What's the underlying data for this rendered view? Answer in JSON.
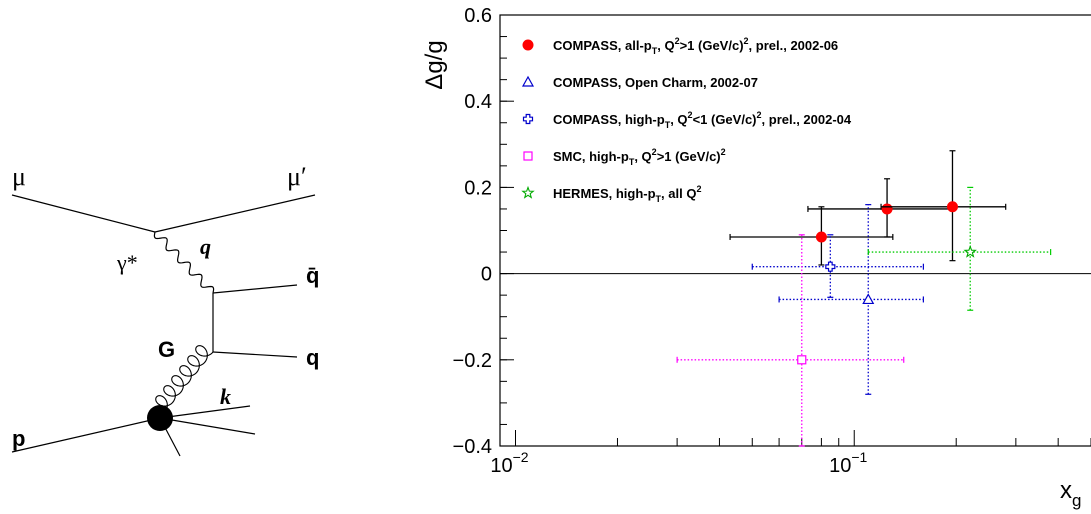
{
  "diagram": {
    "labels": {
      "mu_in": "μ",
      "mu_out": "μ′",
      "photon": "γ*",
      "q_momentum": "q",
      "qbar": "q̄",
      "gluon": "G",
      "quark": "q",
      "proton": "p",
      "k": "k"
    }
  },
  "chart_data": {
    "type": "scatter",
    "xlabel": "x_g",
    "ylabel": "Δg/g",
    "xscale": "log",
    "xlim": [
      0.009,
      0.5
    ],
    "ylim": [
      -0.4,
      0.6
    ],
    "x_ticks": [
      {
        "value": 0.01,
        "base": "10",
        "exp": "−2"
      },
      {
        "value": 0.1,
        "base": "10",
        "exp": "−1"
      }
    ],
    "y_ticks": [
      {
        "value": -0.4,
        "label": "−0.4"
      },
      {
        "value": -0.2,
        "label": "−0.2"
      },
      {
        "value": 0,
        "label": "0"
      },
      {
        "value": 0.2,
        "label": "0.2"
      },
      {
        "value": 0.4,
        "label": "0.4"
      },
      {
        "value": 0.6,
        "label": "0.6"
      }
    ],
    "zero_line": true,
    "legend_position": "top-left",
    "series": [
      {
        "name": "COMPASS, all-pT, Q2>1 (GeV/c)2, prel., 2002-06",
        "legend": [
          [
            "COMPASS, all-p",
            ""
          ],
          [
            "T",
            "sub"
          ],
          [
            ", Q",
            ""
          ],
          [
            "2",
            "sup"
          ],
          [
            ">1 (GeV/c)",
            ""
          ],
          [
            "2",
            "sup"
          ],
          [
            ", prel., 2002-06",
            ""
          ]
        ],
        "marker": "filled-circle",
        "color": "#ff0000",
        "error_color": "#000000",
        "error_style": "solid",
        "points": [
          {
            "x": 0.08,
            "y": 0.085,
            "xlo": 0.043,
            "xhi": 0.13,
            "ylo": 0.02,
            "yhi": 0.155
          },
          {
            "x": 0.125,
            "y": 0.15,
            "xlo": 0.073,
            "xhi": 0.195,
            "ylo": 0.085,
            "yhi": 0.22
          },
          {
            "x": 0.195,
            "y": 0.155,
            "xlo": 0.12,
            "xhi": 0.28,
            "ylo": 0.03,
            "yhi": 0.285
          }
        ]
      },
      {
        "name": "COMPASS, Open Charm, 2002-07",
        "legend": [
          [
            "COMPASS, Open Charm, 2002-07",
            ""
          ]
        ],
        "marker": "open-triangle",
        "color": "#0000cc",
        "error_color": "#0000cc",
        "error_style": "dotted",
        "points": [
          {
            "x": 0.11,
            "y": -0.06,
            "xlo": 0.06,
            "xhi": 0.16,
            "ylo": -0.28,
            "yhi": 0.16
          }
        ]
      },
      {
        "name": "COMPASS, high-pT, Q2<1 (GeV/c)2, prel., 2002-04",
        "legend": [
          [
            "COMPASS, high-p",
            ""
          ],
          [
            "T",
            "sub"
          ],
          [
            ", Q",
            ""
          ],
          [
            "2",
            "sup"
          ],
          [
            "<1 (GeV/c)",
            ""
          ],
          [
            "2",
            "sup"
          ],
          [
            ", prel., 2002-04",
            ""
          ]
        ],
        "marker": "open-cross",
        "color": "#0000cc",
        "error_color": "#0000cc",
        "error_style": "dotted",
        "points": [
          {
            "x": 0.085,
            "y": 0.016,
            "xlo": 0.05,
            "xhi": 0.16,
            "ylo": -0.055,
            "yhi": 0.09
          }
        ]
      },
      {
        "name": "SMC, high-pT, Q2>1 (GeV/c)2",
        "legend": [
          [
            "SMC, high-p",
            ""
          ],
          [
            "T",
            "sub"
          ],
          [
            ", Q",
            ""
          ],
          [
            "2",
            "sup"
          ],
          [
            ">1 (GeV/c)",
            ""
          ],
          [
            "2",
            "sup"
          ]
        ],
        "marker": "open-square",
        "color": "#ff00ff",
        "error_color": "#ff00ff",
        "error_style": "dotted",
        "points": [
          {
            "x": 0.07,
            "y": -0.2,
            "xlo": 0.03,
            "xhi": 0.14,
            "ylo": -0.4,
            "yhi": 0.09
          }
        ]
      },
      {
        "name": "HERMES, high-pT, all Q2",
        "legend": [
          [
            "HERMES, high-p",
            ""
          ],
          [
            "T",
            "sub"
          ],
          [
            ", all Q",
            ""
          ],
          [
            "2",
            "sup"
          ]
        ],
        "marker": "open-star",
        "color": "#00aa00",
        "error_color": "#00cc00",
        "error_style": "dotted",
        "points": [
          {
            "x": 0.22,
            "y": 0.05,
            "xlo": 0.11,
            "xhi": 0.38,
            "ylo": -0.085,
            "yhi": 0.2
          }
        ]
      }
    ]
  }
}
